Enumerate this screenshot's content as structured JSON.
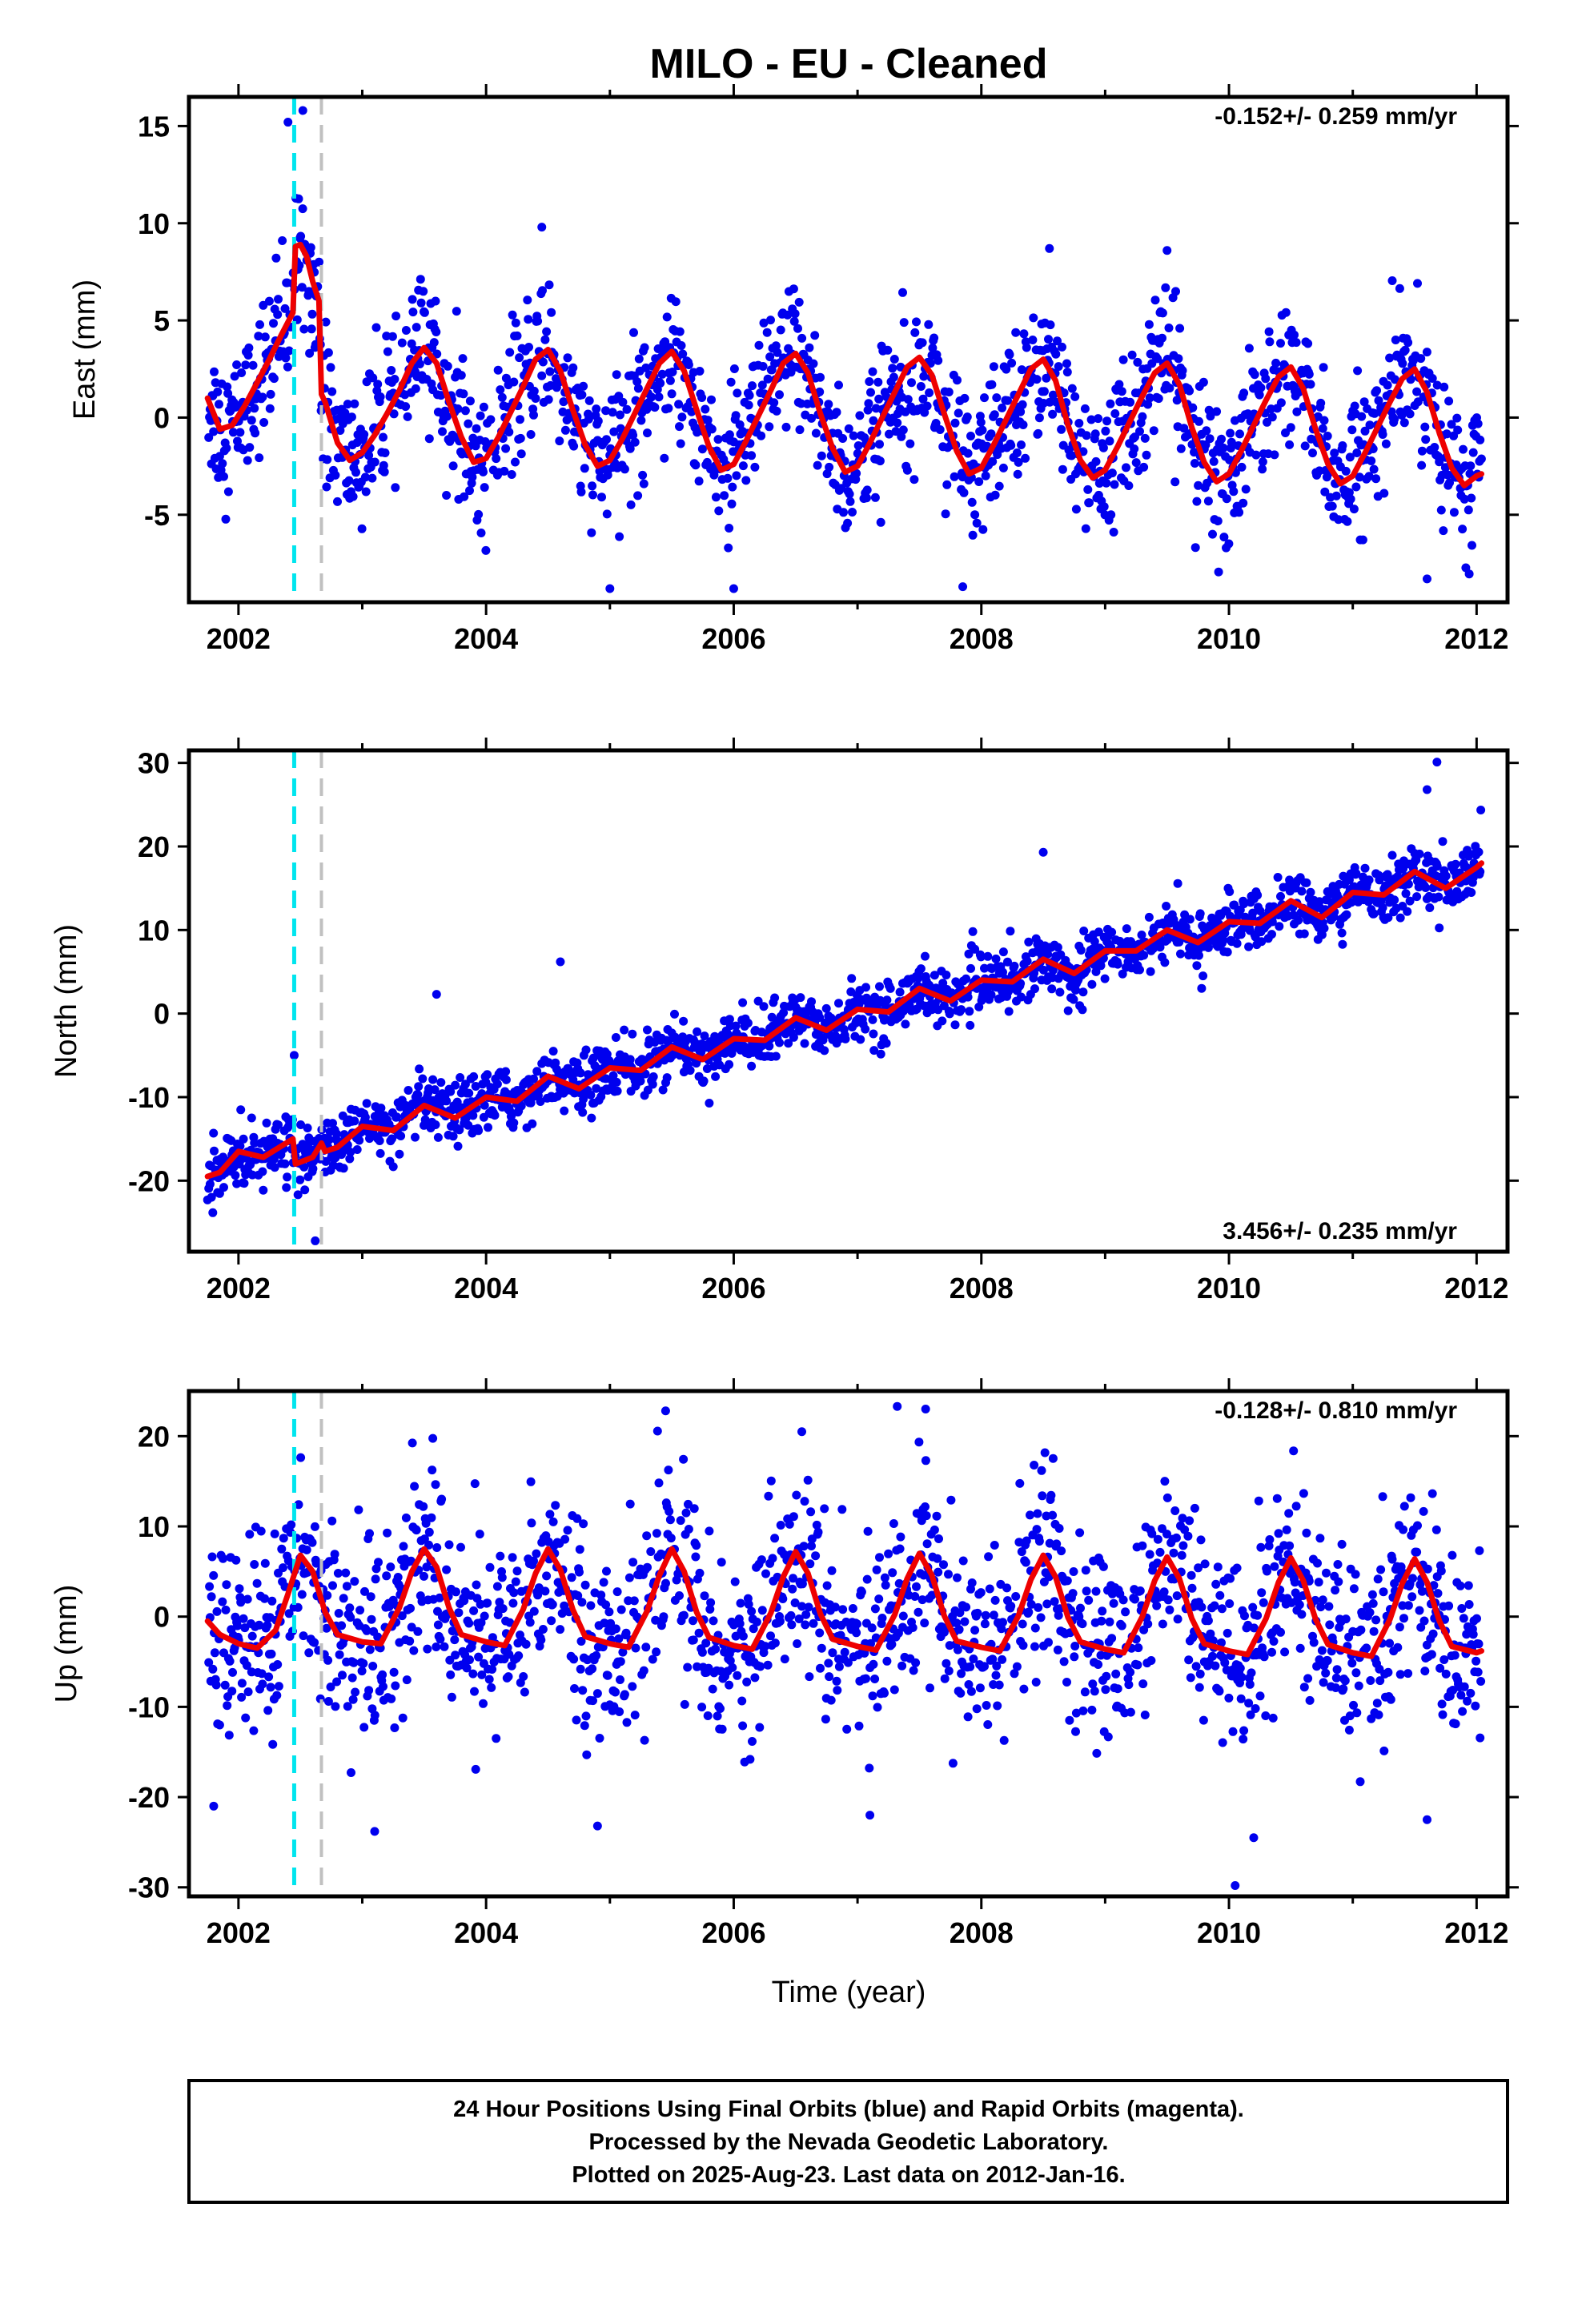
{
  "chart_data": [
    {
      "type": "scatter",
      "panel": "east",
      "title": "MILO  - EU - Cleaned",
      "ylabel": "East (mm)",
      "xlabel": "",
      "rate_label": "-0.152+/- 0.259 mm/yr",
      "xlim": [
        2001.6,
        2012.25
      ],
      "ylim": [
        -9.5,
        16.5
      ],
      "x_ticks": [
        "2002",
        "2004",
        "2006",
        "2008",
        "2010",
        "2012"
      ],
      "y_ticks": [
        "15",
        "10",
        "5",
        "0",
        "-5"
      ],
      "y_tick_values": [
        15,
        10,
        5,
        0,
        -5
      ],
      "grid": false,
      "colors": {
        "observations": "#0000ee",
        "model": "#ee0000",
        "marker_1": "#00e5ee",
        "marker_2": "#c0c0c0"
      },
      "dashed_markers": [
        2002.45,
        2002.67
      ],
      "model_fit": {
        "name": "",
        "x": [
          2001.75,
          2001.85,
          2001.95,
          2002.05,
          2002.15,
          2002.25,
          2002.35,
          2002.44,
          2002.46,
          2002.5,
          2002.55,
          2002.6,
          2002.65,
          2002.67,
          2002.7,
          2002.8,
          2002.9,
          2003.0,
          2003.1,
          2003.2,
          2003.3,
          2003.4,
          2003.5,
          2003.6,
          2003.7,
          2003.8,
          2003.9,
          2004.0,
          2004.1,
          2004.2,
          2004.3,
          2004.4,
          2004.5,
          2004.6,
          2004.7,
          2004.8,
          2004.9,
          2005.0,
          2005.1,
          2005.2,
          2005.3,
          2005.4,
          2005.5,
          2005.6,
          2005.7,
          2005.8,
          2005.9,
          2006.0,
          2006.1,
          2006.2,
          2006.3,
          2006.4,
          2006.5,
          2006.6,
          2006.7,
          2006.8,
          2006.9,
          2007.0,
          2007.1,
          2007.2,
          2007.3,
          2007.4,
          2007.5,
          2007.6,
          2007.7,
          2007.8,
          2007.9,
          2008.0,
          2008.1,
          2008.2,
          2008.3,
          2008.4,
          2008.5,
          2008.6,
          2008.7,
          2008.8,
          2008.9,
          2009.0,
          2009.1,
          2009.2,
          2009.3,
          2009.4,
          2009.5,
          2009.6,
          2009.7,
          2009.8,
          2009.9,
          2010.0,
          2010.1,
          2010.2,
          2010.3,
          2010.4,
          2010.5,
          2010.6,
          2010.7,
          2010.8,
          2010.9,
          2011.0,
          2011.1,
          2011.2,
          2011.3,
          2011.4,
          2011.5,
          2011.6,
          2011.7,
          2011.8,
          2011.9,
          2012.0,
          2012.04
        ],
        "y": [
          1.0,
          -0.6,
          -0.4,
          0.6,
          1.8,
          3.0,
          4.3,
          5.4,
          8.8,
          8.9,
          8.3,
          7.0,
          6.0,
          1.2,
          0.8,
          -1.3,
          -2.2,
          -1.8,
          -0.9,
          0.2,
          1.4,
          2.8,
          3.6,
          2.8,
          0.8,
          -1.0,
          -2.3,
          -2.1,
          -1.0,
          0.3,
          1.6,
          3.0,
          3.5,
          2.4,
          0.4,
          -1.4,
          -2.5,
          -2.2,
          -1.1,
          0.2,
          1.5,
          2.8,
          3.4,
          2.4,
          0.4,
          -1.5,
          -2.7,
          -2.4,
          -1.2,
          0.1,
          1.4,
          2.8,
          3.3,
          2.3,
          0.2,
          -1.6,
          -2.8,
          -2.5,
          -1.3,
          0.0,
          1.3,
          2.6,
          3.1,
          2.2,
          0.2,
          -1.7,
          -2.9,
          -2.6,
          -1.4,
          -0.1,
          1.2,
          2.5,
          3.0,
          1.9,
          -0.4,
          -2.2,
          -3.1,
          -2.7,
          -1.5,
          -0.2,
          1.1,
          2.3,
          2.8,
          1.7,
          -0.5,
          -2.3,
          -3.3,
          -2.9,
          -1.7,
          -0.4,
          0.9,
          2.1,
          2.6,
          1.5,
          -0.6,
          -2.4,
          -3.4,
          -3.0,
          -1.8,
          -0.5,
          0.8,
          2.0,
          2.5,
          1.3,
          -0.8,
          -2.6,
          -3.5,
          -3.0,
          -2.9
        ]
      },
      "observations": {
        "name": "",
        "note_points": "daily positions; generated as model + scatter",
        "scatter_sd": 1.8,
        "outliers": [
          [
            2002.4,
            15.2
          ],
          [
            2002.52,
            15.8
          ],
          [
            2004.45,
            9.8
          ],
          [
            2008.55,
            8.7
          ],
          [
            2009.5,
            8.6
          ],
          [
            2005.0,
            -8.8
          ],
          [
            2006.0,
            -8.8
          ],
          [
            2007.85,
            -8.7
          ],
          [
            2011.6,
            -8.3
          ]
        ]
      }
    },
    {
      "type": "scatter",
      "panel": "north",
      "title": "",
      "ylabel": "North (mm)",
      "xlabel": "",
      "rate_label": "3.456+/- 0.235 mm/yr",
      "xlim": [
        2001.6,
        2012.25
      ],
      "ylim": [
        -28.5,
        31.5
      ],
      "x_ticks": [
        "2002",
        "2004",
        "2006",
        "2008",
        "2010",
        "2012"
      ],
      "y_ticks": [
        "30",
        "20",
        "10",
        "0",
        "-10",
        "-20"
      ],
      "y_tick_values": [
        30,
        20,
        10,
        0,
        -10,
        -20
      ],
      "grid": false,
      "colors": {
        "observations": "#0000ee",
        "model": "#ee0000",
        "marker_1": "#00e5ee",
        "marker_2": "#c0c0c0"
      },
      "dashed_markers": [
        2002.45,
        2002.67
      ],
      "model_fit": {
        "name": "",
        "x": [
          2001.75,
          2001.85,
          2002.0,
          2002.2,
          2002.44,
          2002.46,
          2002.6,
          2002.67,
          2002.7,
          2002.8,
          2003.0,
          2003.25,
          2003.5,
          2003.75,
          2004.0,
          2004.25,
          2004.5,
          2004.75,
          2005.0,
          2005.25,
          2005.5,
          2005.75,
          2006.0,
          2006.25,
          2006.5,
          2006.75,
          2007.0,
          2007.25,
          2007.5,
          2007.75,
          2008.0,
          2008.25,
          2008.5,
          2008.75,
          2009.0,
          2009.25,
          2009.5,
          2009.75,
          2010.0,
          2010.25,
          2010.5,
          2010.75,
          2011.0,
          2011.25,
          2011.5,
          2011.75,
          2012.0,
          2012.04
        ],
        "y": [
          -19.5,
          -19.0,
          -16.5,
          -17.2,
          -15.0,
          -18.0,
          -17.2,
          -15.5,
          -16.5,
          -16.0,
          -13.5,
          -14.0,
          -11.0,
          -12.5,
          -10.0,
          -10.5,
          -7.5,
          -9.0,
          -6.5,
          -6.8,
          -4.0,
          -5.5,
          -3.0,
          -3.2,
          -0.5,
          -2.0,
          0.5,
          0.2,
          3.0,
          1.5,
          4.0,
          3.8,
          6.5,
          4.8,
          7.5,
          7.5,
          10.0,
          8.5,
          11.0,
          10.8,
          13.5,
          11.5,
          14.5,
          14.2,
          17.0,
          15.0,
          17.5,
          18.0
        ]
      },
      "observations": {
        "name": "",
        "note_points": "daily positions; generated as model + scatter",
        "scatter_sd": 1.7,
        "outliers": [
          [
            2002.45,
            -5.0
          ],
          [
            2003.6,
            2.3
          ],
          [
            2004.6,
            6.2
          ],
          [
            2008.5,
            19.3
          ],
          [
            2011.6,
            26.8
          ],
          [
            2011.68,
            30.1
          ],
          [
            2002.62,
            -27.2
          ],
          [
            2001.75,
            -22.3
          ]
        ]
      }
    },
    {
      "type": "scatter",
      "panel": "up",
      "title": "",
      "ylabel": "Up (mm)",
      "xlabel": "Time (year)",
      "rate_label": "-0.128+/- 0.810 mm/yr",
      "xlim": [
        2001.6,
        2012.25
      ],
      "ylim": [
        -31,
        25
      ],
      "x_ticks": [
        "2002",
        "2004",
        "2006",
        "2008",
        "2010",
        "2012"
      ],
      "y_ticks": [
        "20",
        "10",
        "0",
        "-10",
        "-20",
        "-30"
      ],
      "y_tick_values": [
        20,
        10,
        0,
        -10,
        -20,
        -30
      ],
      "grid": false,
      "colors": {
        "observations": "#0000ee",
        "model": "#ee0000",
        "marker_1": "#00e5ee",
        "marker_2": "#c0c0c0"
      },
      "dashed_markers": [
        2002.45,
        2002.67
      ],
      "model_fit": {
        "name": "",
        "x": [
          2001.75,
          2001.85,
          2002.0,
          2002.15,
          2002.3,
          2002.4,
          2002.5,
          2002.6,
          2002.7,
          2002.8,
          2003.0,
          2003.15,
          2003.3,
          2003.4,
          2003.5,
          2003.6,
          2003.7,
          2003.8,
          2004.0,
          2004.15,
          2004.3,
          2004.4,
          2004.5,
          2004.6,
          2004.7,
          2004.8,
          2005.0,
          2005.15,
          2005.3,
          2005.4,
          2005.5,
          2005.6,
          2005.7,
          2005.8,
          2006.0,
          2006.15,
          2006.3,
          2006.4,
          2006.5,
          2006.6,
          2006.7,
          2006.8,
          2007.0,
          2007.15,
          2007.3,
          2007.4,
          2007.5,
          2007.6,
          2007.7,
          2007.8,
          2008.0,
          2008.15,
          2008.3,
          2008.4,
          2008.5,
          2008.6,
          2008.7,
          2008.8,
          2009.0,
          2009.15,
          2009.3,
          2009.4,
          2009.5,
          2009.6,
          2009.7,
          2009.8,
          2010.0,
          2010.15,
          2010.3,
          2010.4,
          2010.5,
          2010.6,
          2010.7,
          2010.8,
          2011.0,
          2011.15,
          2011.3,
          2011.4,
          2011.5,
          2011.6,
          2011.7,
          2011.8,
          2012.0,
          2012.04
        ],
        "y": [
          -0.5,
          -2.0,
          -3.0,
          -3.5,
          -1.5,
          2.5,
          6.8,
          5.0,
          0.5,
          -2.0,
          -2.8,
          -3.0,
          1.0,
          5.0,
          7.5,
          5.5,
          1.0,
          -2.0,
          -2.8,
          -3.2,
          0.8,
          4.8,
          7.5,
          5.2,
          0.8,
          -2.2,
          -3.0,
          -3.4,
          0.6,
          4.6,
          7.5,
          5.0,
          0.5,
          -2.3,
          -3.2,
          -3.6,
          0.4,
          4.4,
          7.2,
          4.8,
          0.3,
          -2.5,
          -3.3,
          -3.7,
          0.2,
          4.2,
          7.0,
          4.6,
          0.1,
          -2.7,
          -3.4,
          -3.8,
          0.1,
          4.1,
          6.8,
          4.4,
          -0.1,
          -2.8,
          -3.6,
          -4.0,
          0.0,
          4.0,
          6.6,
          4.2,
          -0.2,
          -3.0,
          -3.8,
          -4.2,
          -0.2,
          3.8,
          6.5,
          4.0,
          -0.3,
          -3.1,
          -4.0,
          -4.4,
          -0.3,
          3.7,
          6.4,
          3.8,
          -0.5,
          -3.3,
          -4.0,
          -3.8
        ]
      },
      "observations": {
        "name": "",
        "note_points": "daily positions; generated as model + scatter",
        "scatter_sd": 5.2,
        "outliers": [
          [
            2005.45,
            22.8
          ],
          [
            2007.55,
            23.0
          ],
          [
            2006.55,
            20.5
          ],
          [
            2010.05,
            -29.8
          ],
          [
            2010.2,
            -24.5
          ],
          [
            2003.1,
            -23.8
          ],
          [
            2004.9,
            -23.2
          ],
          [
            2001.8,
            -21.0
          ],
          [
            2007.1,
            -22.0
          ],
          [
            2011.6,
            -22.5
          ]
        ]
      }
    }
  ],
  "footer": {
    "line1": "24 Hour Positions Using Final Orbits (blue) and Rapid Orbits (magenta).",
    "line2": "Processed by the Nevada Geodetic Laboratory.",
    "line3": "Plotted on 2025-Aug-23. Last data on 2012-Jan-16."
  }
}
